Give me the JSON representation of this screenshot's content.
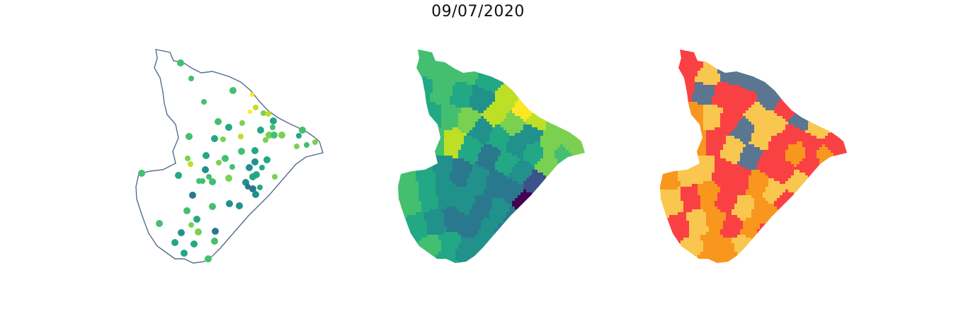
{
  "title": "09/07/2020",
  "colors": {
    "outline": "#546e8a",
    "viridis": [
      "#440154",
      "#3b528b",
      "#2a788e",
      "#21918c",
      "#22a884",
      "#44bf70",
      "#7ad151",
      "#bddf26",
      "#fde725"
    ],
    "classes": [
      "#5a7691",
      "#f9c74f",
      "#f8961e",
      "#f94144"
    ]
  },
  "maps": [
    {
      "id": "points",
      "kind": "proportional-points"
    },
    {
      "id": "choropleth",
      "kind": "choropleth"
    },
    {
      "id": "classes",
      "kind": "categorical-choropleth"
    }
  ]
}
